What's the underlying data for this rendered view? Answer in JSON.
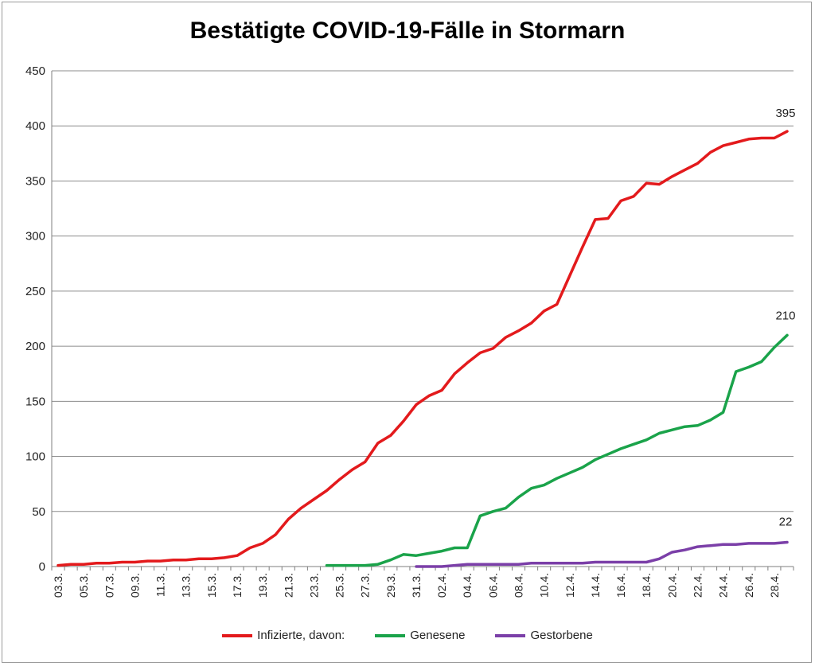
{
  "chart_data": {
    "type": "line",
    "title": "Bestätigte COVID-19-Fälle in Stormarn",
    "xlabel": "",
    "ylabel": "",
    "ylim": [
      0,
      450
    ],
    "yticks": [
      0,
      50,
      100,
      150,
      200,
      250,
      300,
      350,
      400,
      450
    ],
    "grid": true,
    "legend_position": "bottom",
    "x": [
      "03.3.",
      "04.3.",
      "05.3.",
      "06.3.",
      "07.3.",
      "08.3.",
      "09.3.",
      "10.3.",
      "11.3.",
      "12.3.",
      "13.3.",
      "14.3.",
      "15.3.",
      "16.3.",
      "17.3.",
      "18.3.",
      "19.3.",
      "20.3.",
      "21.3.",
      "22.3.",
      "23.3.",
      "24.3.",
      "25.3.",
      "26.3.",
      "27.3.",
      "28.3.",
      "29.3.",
      "30.3.",
      "31.3.",
      "01.4.",
      "02.4.",
      "03.4.",
      "04.4.",
      "05.4.",
      "06.4.",
      "07.4.",
      "08.4.",
      "09.4.",
      "10.4.",
      "11.4.",
      "12.4.",
      "13.4.",
      "14.4.",
      "15.4.",
      "16.4.",
      "17.4.",
      "18.4.",
      "19.4.",
      "20.4.",
      "21.4.",
      "22.4.",
      "23.4.",
      "24.4.",
      "25.4.",
      "26.4.",
      "27.4.",
      "28.4.",
      "29.4."
    ],
    "x_tick_labels": [
      "03.3.",
      "05.3.",
      "07.3.",
      "09.3.",
      "11.3.",
      "13.3.",
      "15.3.",
      "17.3.",
      "19.3.",
      "21.3.",
      "23.3.",
      "25.3.",
      "27.3.",
      "29.3.",
      "31.3.",
      "02.4.",
      "04.4.",
      "06.4.",
      "08.4.",
      "10.4.",
      "12.4.",
      "14.4.",
      "16.4.",
      "18.4.",
      "20.4.",
      "22.4.",
      "24.4.",
      "26.4.",
      "28.4."
    ],
    "series": [
      {
        "name": "Infizierte, davon:",
        "color": "#e31a1c",
        "end_label": "395",
        "values": [
          1,
          2,
          2,
          3,
          3,
          4,
          4,
          5,
          5,
          6,
          6,
          7,
          7,
          8,
          10,
          17,
          21,
          29,
          43,
          53,
          61,
          69,
          79,
          88,
          95,
          112,
          119,
          132,
          147,
          155,
          160,
          175,
          185,
          194,
          198,
          208,
          214,
          221,
          232,
          238,
          264,
          290,
          315,
          316,
          332,
          336,
          348,
          347,
          354,
          360,
          366,
          376,
          382,
          385,
          388,
          389,
          389,
          395
        ]
      },
      {
        "name": "Genesene",
        "color": "#1aa34a",
        "end_label": "210",
        "values": [
          null,
          null,
          null,
          null,
          null,
          null,
          null,
          null,
          null,
          null,
          null,
          null,
          null,
          null,
          null,
          null,
          null,
          null,
          null,
          null,
          null,
          1,
          1,
          1,
          1,
          2,
          6,
          11,
          10,
          12,
          14,
          17,
          17,
          46,
          50,
          53,
          63,
          71,
          74,
          80,
          85,
          90,
          97,
          102,
          107,
          111,
          115,
          121,
          124,
          127,
          128,
          133,
          140,
          177,
          181,
          186,
          199,
          210
        ]
      },
      {
        "name": "Gestorbene",
        "color": "#7b3fa8",
        "end_label": "22",
        "values": [
          null,
          null,
          null,
          null,
          null,
          null,
          null,
          null,
          null,
          null,
          null,
          null,
          null,
          null,
          null,
          null,
          null,
          null,
          null,
          null,
          null,
          null,
          null,
          null,
          null,
          null,
          null,
          null,
          0,
          0,
          0,
          1,
          2,
          2,
          2,
          2,
          2,
          3,
          3,
          3,
          3,
          3,
          4,
          4,
          4,
          4,
          4,
          7,
          13,
          15,
          18,
          19,
          20,
          20,
          21,
          21,
          21,
          22
        ]
      }
    ]
  }
}
